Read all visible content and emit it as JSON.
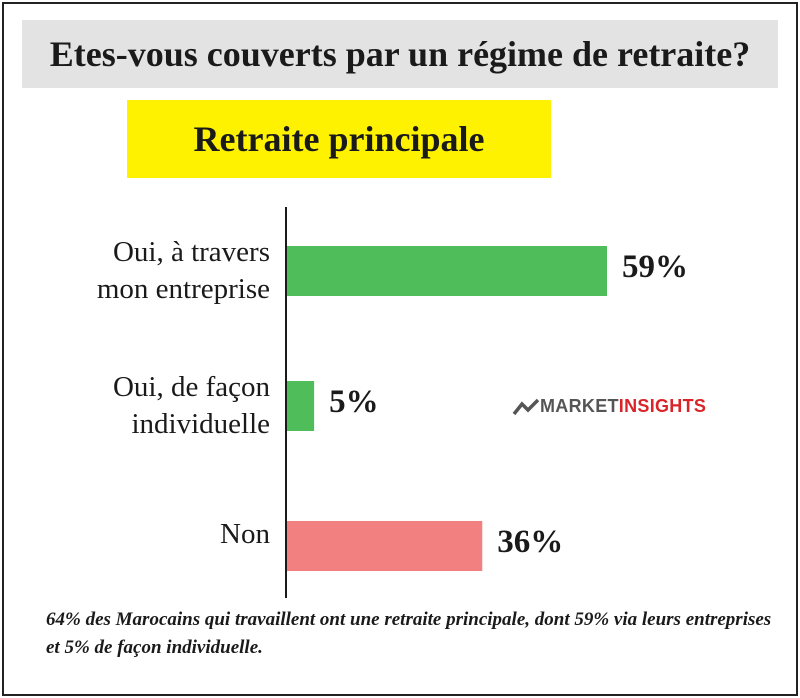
{
  "header": {
    "title": "Etes-vous couverts par un régime de retraite?",
    "subtitle": "Retraite principale"
  },
  "chart_data": {
    "type": "bar",
    "orientation": "horizontal",
    "categories": [
      [
        "Oui, à travers",
        "mon entreprise"
      ],
      [
        "Oui, de façon",
        "individuelle"
      ],
      [
        "Non"
      ]
    ],
    "values": [
      59,
      5,
      36
    ],
    "value_labels": [
      "59%",
      "5%",
      "36%"
    ],
    "colors": [
      "#4fbe5a",
      "#4fbe5a",
      "#f28080"
    ],
    "xlim": [
      0,
      59
    ]
  },
  "logo": {
    "part1": "MARKET",
    "part2": "INSIGHTS",
    "color1": "#555555",
    "color2": "#d9252a"
  },
  "footnote": "64% des Marocains qui travaillent ont une retraite principale, dont 59% via leurs entreprises et 5% de façon individuelle."
}
